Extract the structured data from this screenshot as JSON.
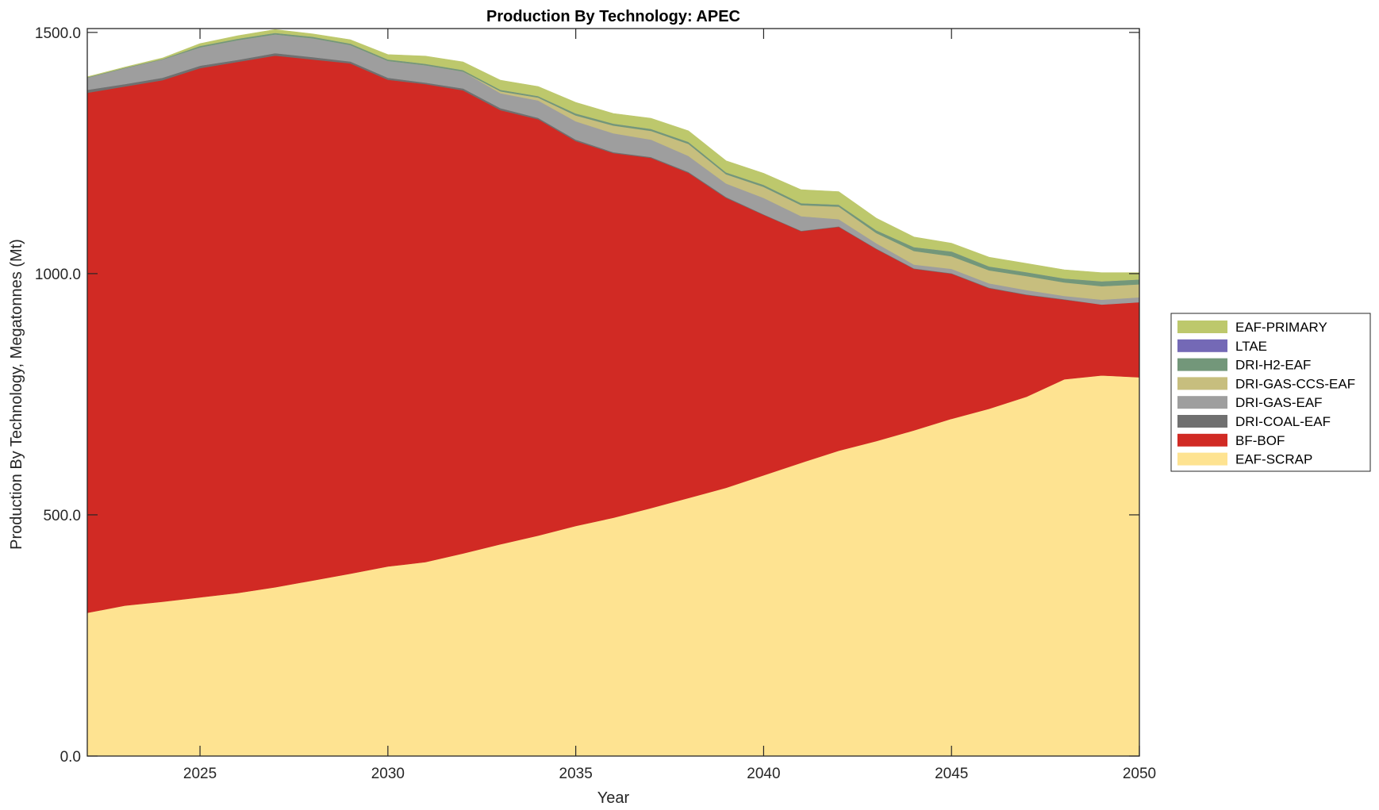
{
  "chart_data": {
    "type": "area",
    "stacked": true,
    "title": "Production By Technology: APEC",
    "xlabel": "Year",
    "ylabel": "Production By Technology, Megatonnes (Mt)",
    "xlim": [
      2022,
      2050
    ],
    "ylim": [
      0,
      1508
    ],
    "x_ticks": [
      2025,
      2030,
      2035,
      2040,
      2045,
      2050
    ],
    "x_tick_labels": [
      "2025",
      "2030",
      "2035",
      "2040",
      "2045",
      "2050"
    ],
    "y_ticks": [
      0,
      500,
      1000,
      1500
    ],
    "y_tick_labels": [
      "0.0",
      "500.0",
      "1000.0",
      "1500.0"
    ],
    "grid": false,
    "legend_position": "right",
    "x": [
      2022,
      2023,
      2024,
      2025,
      2026,
      2027,
      2028,
      2029,
      2030,
      2031,
      2032,
      2033,
      2034,
      2035,
      2036,
      2037,
      2038,
      2039,
      2040,
      2041,
      2042,
      2043,
      2044,
      2045,
      2046,
      2047,
      2048,
      2049,
      2050
    ],
    "series": [
      {
        "name": "EAF-SCRAP",
        "color": "#FEE391",
        "values": [
          297,
          312,
          320,
          329,
          338,
          350,
          364,
          378,
          393,
          402,
          420,
          439,
          457,
          477,
          494,
          514,
          535,
          556,
          582,
          608,
          633,
          653,
          675,
          699,
          720,
          745,
          781,
          789,
          785
        ]
      },
      {
        "name": "BF-BOF",
        "color": "#D12A24",
        "values": [
          1078,
          1076,
          1081,
          1097,
          1101,
          1102,
          1080,
          1058,
          1009,
          991,
          960,
          900,
          863,
          798,
          756,
          726,
          674,
          601,
          540,
          480,
          464,
          398,
          335,
          301,
          250,
          211,
          165,
          147,
          156
        ]
      },
      {
        "name": "DRI-COAL-EAF",
        "color": "#707070",
        "values": [
          6,
          5,
          5,
          5,
          4,
          5,
          5,
          4,
          4,
          3,
          4,
          4,
          3,
          3,
          2,
          2,
          2,
          2,
          1,
          1,
          1,
          1,
          1,
          1,
          1,
          1,
          1,
          0,
          0
        ]
      },
      {
        "name": "DRI-GAS-EAF",
        "color": "#9E9E9E",
        "values": [
          25,
          33,
          38,
          38,
          41,
          39,
          39,
          34,
          35,
          36,
          35,
          31,
          36,
          38,
          39,
          36,
          33,
          28,
          34,
          30,
          15,
          11,
          8,
          9,
          9,
          9,
          7,
          10,
          10
        ]
      },
      {
        "name": "DRI-GAS-CCS-EAF",
        "color": "#C7BE7E",
        "values": [
          0,
          0,
          0,
          0,
          0,
          0,
          0,
          0,
          0,
          0,
          0,
          4,
          6,
          12,
          16,
          18,
          25,
          19,
          23,
          23,
          26,
          21,
          28,
          26,
          27,
          29,
          28,
          28,
          27
        ]
      },
      {
        "name": "DRI-H2-EAF",
        "color": "#73977A",
        "values": [
          1,
          1,
          1,
          3,
          3,
          3,
          3,
          3,
          3,
          3,
          3,
          3,
          3,
          4,
          4,
          4,
          4,
          4,
          4,
          4,
          4,
          6,
          8,
          10,
          8,
          8,
          8,
          10,
          10
        ]
      },
      {
        "name": "LTAE",
        "color": "#7469B6",
        "values": [
          0,
          0,
          0,
          0,
          0,
          0,
          0,
          0,
          0,
          0,
          0,
          0,
          0,
          0,
          0,
          0,
          0,
          0,
          0,
          0,
          0,
          0,
          0,
          0,
          0,
          0,
          0,
          0,
          0
        ]
      },
      {
        "name": "EAF-PRIMARY",
        "color": "#BDC86C",
        "values": [
          1,
          1,
          2,
          5,
          6,
          7,
          6,
          8,
          10,
          16,
          17,
          20,
          20,
          23,
          21,
          22,
          23,
          24,
          24,
          28,
          27,
          25,
          21,
          17,
          19,
          18,
          18,
          18,
          14
        ]
      }
    ],
    "legend_order": [
      "EAF-PRIMARY",
      "LTAE",
      "DRI-H2-EAF",
      "DRI-GAS-CCS-EAF",
      "DRI-GAS-EAF",
      "DRI-COAL-EAF",
      "BF-BOF",
      "EAF-SCRAP"
    ]
  }
}
